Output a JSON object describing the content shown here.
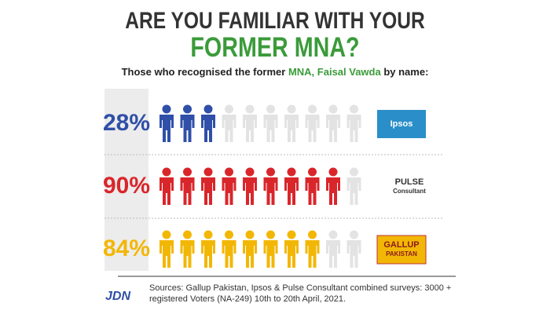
{
  "chart_data": {
    "type": "pictogram",
    "title": [
      "ARE YOU FAMILIAR WITH YOUR",
      "FORMER MNA?"
    ],
    "subtitle": [
      "Those who recognised the former ",
      "MNA, Faisal Vawda",
      " by name:"
    ],
    "categories": [
      [
        "Ipsos"
      ],
      [
        "PULSE",
        "Consultant"
      ],
      [
        "GALLUP",
        "PAKISTAN"
      ]
    ],
    "values": [
      28,
      90,
      84
    ],
    "value_labels": [
      "28%",
      "90%",
      "84%"
    ],
    "colors": [
      "#2f4fa8",
      "#d9262b",
      "#f2b705"
    ],
    "empty_color": "#e3e3e3",
    "xlim": [
      0,
      100
    ],
    "icon_count": 10,
    "source": "Sources: Gallup Pakistan, Ipsos & Pulse Consultant combined surveys: 3000 + registered Voters (NA-249) 10th to 20th April, 2021.",
    "brand": "JDN"
  }
}
